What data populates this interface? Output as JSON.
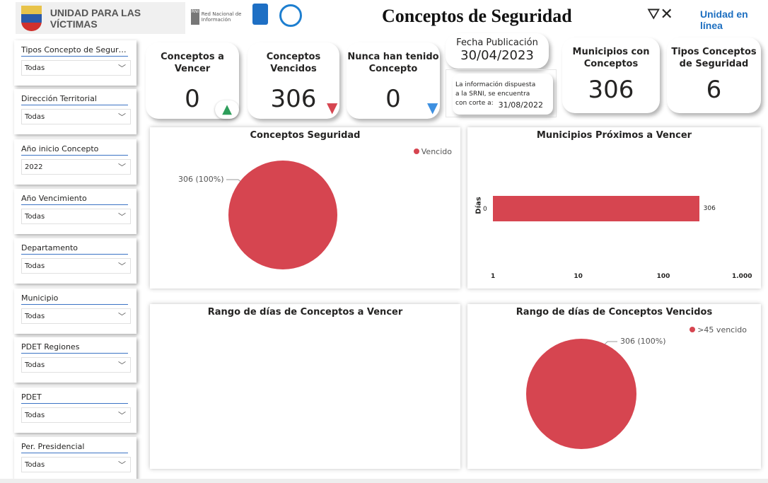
{
  "header": {
    "org": "UNIDAD PARA LAS VÍCTIMAS",
    "rni_logo": "Red Nacional de Información",
    "title": "Conceptos de Seguridad",
    "clear_filters_icon": "filter-clear-icon",
    "brand": "Unidad en línea"
  },
  "slicers": [
    {
      "label": "Tipos Concepto de Seguridad",
      "value": "Todas"
    },
    {
      "label": "Dirección Territorial",
      "value": "Todas"
    },
    {
      "label": "Año inicio Concepto",
      "value": "2022"
    },
    {
      "label": "Año Vencimiento",
      "value": "Todas"
    },
    {
      "label": "Departamento",
      "value": "Todas"
    },
    {
      "label": "Municipio",
      "value": "Todas"
    },
    {
      "label": "PDET Regiones",
      "value": "Todas"
    },
    {
      "label": "PDET",
      "value": "Todas"
    },
    {
      "label": "Per. Presidencial",
      "value": "Todas"
    }
  ],
  "kpis": {
    "a_vencer": {
      "label": "Conceptos a Vencer",
      "value": "0",
      "arrow": "up",
      "color": "#2e9e5b"
    },
    "vencidos": {
      "label": "Conceptos Vencidos",
      "value": "306",
      "arrow": "down",
      "color": "#d64550"
    },
    "nunca": {
      "label": "Nunca han tenido Concepto",
      "value": "0",
      "arrow": "down",
      "color": "#3d8fe0"
    },
    "municipios": {
      "label": "Municipios con Conceptos",
      "value": "306"
    },
    "tipos": {
      "label": "Tipos Conceptos de Seguridad",
      "value": "6"
    }
  },
  "fecha": {
    "label": "Fecha Publicación",
    "value": "30/04/2023",
    "note": "La información dispuesta a la SRNI, se encuentra con corte a:",
    "corte": "31/08/2022"
  },
  "chart_data": [
    {
      "type": "pie",
      "title": "Conceptos Seguridad",
      "legend": "top-right",
      "slices": [
        {
          "name": "Vencido",
          "value": 306,
          "label": "306 (100%)",
          "color": "#d64550"
        }
      ]
    },
    {
      "type": "bar",
      "orientation": "horizontal",
      "title": "Municipios Próximos a Vencer",
      "ylabel": "Días",
      "categories": [
        "0"
      ],
      "values": [
        306
      ],
      "data_labels": [
        "306"
      ],
      "xscale": "log",
      "xlim": [
        1,
        1000
      ],
      "xticks": [
        "1",
        "10",
        "100",
        "1.000"
      ],
      "color": "#d64550"
    },
    {
      "type": "pie",
      "title": "Rango de días de Conceptos a Vencer",
      "slices": []
    },
    {
      "type": "pie",
      "title": "Rango de días de Conceptos Vencidos",
      "legend": "top-right",
      "slices": [
        {
          "name": ">45 vencido",
          "value": 306,
          "label": "306 (100%)",
          "color": "#d64550"
        }
      ]
    }
  ]
}
